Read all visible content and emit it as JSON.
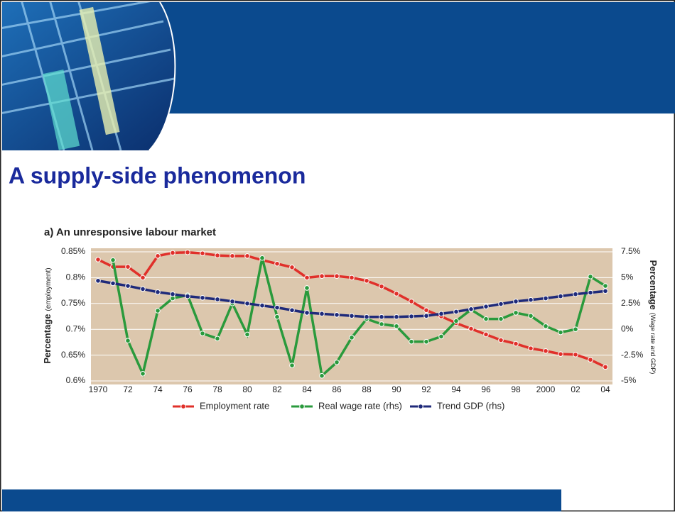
{
  "title": "A supply-side phenomenon",
  "chart_data": {
    "type": "line",
    "title": "a) An unresponsive labour market",
    "y_label": "Percentage",
    "y_label_note": "(employment)",
    "y2_label": "Percentage",
    "y2_label_note": "(Wage rate and GDP)",
    "x": [
      1970,
      1971,
      1972,
      1973,
      1974,
      1975,
      1976,
      1977,
      1978,
      1979,
      1980,
      1981,
      1982,
      1983,
      1984,
      1985,
      1986,
      1987,
      1988,
      1989,
      1990,
      1991,
      1992,
      1993,
      1994,
      1995,
      1996,
      1997,
      1998,
      1999,
      2000,
      2001,
      2002,
      2003,
      2004
    ],
    "xlim": [
      1970,
      2004
    ],
    "xticks": [
      {
        "value": 1970,
        "label": "1970"
      },
      {
        "value": 1972,
        "label": "72"
      },
      {
        "value": 1974,
        "label": "74"
      },
      {
        "value": 1976,
        "label": "76"
      },
      {
        "value": 1978,
        "label": "78"
      },
      {
        "value": 1980,
        "label": "80"
      },
      {
        "value": 1982,
        "label": "82"
      },
      {
        "value": 1984,
        "label": "84"
      },
      {
        "value": 1986,
        "label": "86"
      },
      {
        "value": 1988,
        "label": "88"
      },
      {
        "value": 1990,
        "label": "90"
      },
      {
        "value": 1992,
        "label": "92"
      },
      {
        "value": 1994,
        "label": "94"
      },
      {
        "value": 1996,
        "label": "96"
      },
      {
        "value": 1998,
        "label": "98"
      },
      {
        "value": 2000,
        "label": "2000"
      },
      {
        "value": 2002,
        "label": "02"
      },
      {
        "value": 2004,
        "label": "04"
      }
    ],
    "ylim": [
      0.6,
      0.85
    ],
    "yticks": [
      {
        "value": 0.6,
        "label": "0.6%"
      },
      {
        "value": 0.65,
        "label": "0.65%"
      },
      {
        "value": 0.7,
        "label": "0.7%"
      },
      {
        "value": 0.75,
        "label": "0.75%"
      },
      {
        "value": 0.8,
        "label": "0.8%"
      },
      {
        "value": 0.85,
        "label": "0.85%"
      }
    ],
    "y2lim": [
      -5,
      7.5
    ],
    "y2ticks": [
      {
        "value": -5,
        "label": "-5%"
      },
      {
        "value": -2.5,
        "label": "-2.5%"
      },
      {
        "value": 0,
        "label": "0%"
      },
      {
        "value": 2.5,
        "label": "2.5%"
      },
      {
        "value": 5,
        "label": "5%"
      },
      {
        "value": 7.5,
        "label": "7.5%"
      }
    ],
    "grid": true,
    "series": [
      {
        "name": "Employment rate",
        "color": "#e0302a",
        "values": [
          0.835,
          0.821,
          0.821,
          0.8,
          0.842,
          0.848,
          0.849,
          0.847,
          0.843,
          0.842,
          0.842,
          0.834,
          0.827,
          0.82,
          0.8,
          0.803,
          0.803,
          0.8,
          0.794,
          0.783,
          0.769,
          0.754,
          0.737,
          0.725,
          0.712,
          0.701,
          0.69,
          0.679,
          0.672,
          0.663,
          0.658,
          0.652,
          0.651,
          0.641,
          0.627
        ]
      },
      {
        "name": "Real wage rate (rhs)",
        "color": "#2a9a3c",
        "axis": "y2",
        "values": [
          null,
          6.7,
          -1.1,
          -4.3,
          1.8,
          3.0,
          3.3,
          -0.4,
          -0.9,
          2.5,
          -0.5,
          6.9,
          1.2,
          -3.5,
          4.0,
          -4.5,
          -3.2,
          -0.8,
          1.0,
          0.5,
          0.3,
          -1.2,
          -1.2,
          -0.7,
          0.8,
          1.9,
          1.0,
          1.0,
          1.6,
          1.3,
          0.3,
          -0.3,
          0.0,
          5.1,
          4.2
        ]
      },
      {
        "name": "Trend GDP (rhs)",
        "color": "#1f2a7a",
        "axis": "y2",
        "values": [
          4.7,
          4.45,
          4.2,
          3.9,
          3.6,
          3.4,
          3.2,
          3.05,
          2.9,
          2.7,
          2.5,
          2.3,
          2.1,
          1.85,
          1.6,
          1.5,
          1.4,
          1.3,
          1.2,
          1.2,
          1.2,
          1.25,
          1.3,
          1.5,
          1.7,
          1.95,
          2.2,
          2.45,
          2.7,
          2.85,
          3.0,
          3.2,
          3.4,
          3.55,
          3.7
        ]
      }
    ]
  }
}
